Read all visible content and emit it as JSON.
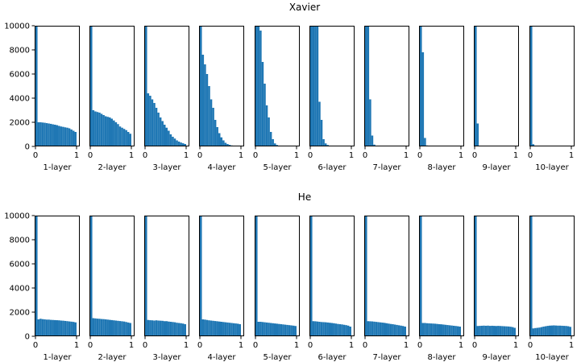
{
  "chart_data": {
    "type": "bar",
    "subtype": "histogram-grid",
    "bar_color": "#1f77b4",
    "rows": [
      {
        "title": "Xavier",
        "panels": [
          {
            "xlabel": "1-layer",
            "xlim": [
              0,
              1
            ],
            "ylim": [
              0,
              10000
            ],
            "x_ticks": [
              "0",
              "1"
            ],
            "y_ticks": [
              "0",
              "2000",
              "4000",
              "6000",
              "8000",
              "10000"
            ],
            "bin_values": [
              10000,
              2000,
              2000,
              1980,
              1960,
              1930,
              1900,
              1870,
              1830,
              1800,
              1760,
              1700,
              1650,
              1620,
              1580,
              1550,
              1500,
              1400,
              1300,
              1200
            ]
          },
          {
            "xlabel": "2-layer",
            "xlim": [
              0,
              1
            ],
            "ylim": [
              0,
              10000
            ],
            "x_ticks": [
              "0",
              "1"
            ],
            "y_ticks": [],
            "bin_values": [
              10000,
              3000,
              2900,
              2850,
              2800,
              2700,
              2600,
              2500,
              2450,
              2400,
              2300,
              2150,
              2000,
              1850,
              1650,
              1550,
              1450,
              1350,
              1200,
              1050
            ]
          },
          {
            "xlabel": "3-layer",
            "xlim": [
              0,
              1
            ],
            "ylim": [
              0,
              10000
            ],
            "x_ticks": [
              "0",
              "1"
            ],
            "y_ticks": [],
            "bin_values": [
              10000,
              4400,
              4200,
              3900,
              3600,
              3200,
              2800,
              2400,
              2100,
              1800,
              1550,
              1300,
              1000,
              800,
              650,
              500,
              400,
              320,
              260,
              200
            ]
          },
          {
            "xlabel": "4-layer",
            "xlim": [
              0,
              1
            ],
            "ylim": [
              0,
              10000
            ],
            "x_ticks": [
              "0",
              "1"
            ],
            "y_ticks": [],
            "bin_values": [
              10000,
              7600,
              6800,
              6000,
              5000,
              3900,
              3200,
              2200,
              1600,
              1100,
              750,
              500,
              300,
              200,
              130,
              80,
              50,
              30,
              20,
              10
            ]
          },
          {
            "xlabel": "5-layer",
            "xlim": [
              0,
              1
            ],
            "ylim": [
              0,
              10000
            ],
            "x_ticks": [
              "0",
              "1"
            ],
            "y_ticks": [],
            "bin_values": [
              10000,
              10000,
              9600,
              7000,
              5200,
              3400,
              2400,
              1200,
              600,
              250,
              120,
              60,
              30,
              15,
              8,
              4,
              2,
              1,
              0,
              0
            ]
          },
          {
            "xlabel": "6-layer",
            "xlim": [
              0,
              1
            ],
            "ylim": [
              0,
              10000
            ],
            "x_ticks": [
              "0",
              "1"
            ],
            "y_ticks": [],
            "bin_values": [
              10000,
              10000,
              10000,
              10000,
              3700,
              2200,
              600,
              250,
              120,
              60,
              30,
              15,
              8,
              4,
              2,
              1,
              0,
              0,
              0,
              0
            ]
          },
          {
            "xlabel": "7-layer",
            "xlim": [
              0,
              1
            ],
            "ylim": [
              0,
              10000
            ],
            "x_ticks": [
              "0",
              "1"
            ],
            "y_ticks": [],
            "bin_values": [
              10000,
              10000,
              3900,
              900,
              150,
              60,
              30,
              15,
              8,
              4,
              2,
              1,
              0,
              0,
              0,
              0,
              0,
              0,
              0,
              0
            ]
          },
          {
            "xlabel": "8-layer",
            "xlim": [
              0,
              1
            ],
            "ylim": [
              0,
              10000
            ],
            "x_ticks": [
              "0",
              "1"
            ],
            "y_ticks": [],
            "bin_values": [
              10000,
              7800,
              700,
              80,
              20,
              5,
              2,
              1,
              0,
              0,
              0,
              0,
              0,
              0,
              0,
              0,
              0,
              0,
              0,
              0
            ]
          },
          {
            "xlabel": "9-layer",
            "xlim": [
              0,
              1
            ],
            "ylim": [
              0,
              10000
            ],
            "x_ticks": [
              "0",
              "1"
            ],
            "y_ticks": [],
            "bin_values": [
              10000,
              1900,
              40,
              5,
              1,
              0,
              0,
              0,
              0,
              0,
              0,
              0,
              0,
              0,
              0,
              0,
              0,
              0,
              0,
              0
            ]
          },
          {
            "xlabel": "10-layer",
            "xlim": [
              0,
              1
            ],
            "ylim": [
              0,
              10000
            ],
            "x_ticks": [
              "0",
              "1"
            ],
            "y_ticks": [],
            "bin_values": [
              10000,
              180,
              10,
              2,
              0,
              0,
              0,
              0,
              0,
              0,
              0,
              0,
              0,
              0,
              0,
              0,
              0,
              0,
              0,
              0
            ]
          }
        ]
      },
      {
        "title": "He",
        "panels": [
          {
            "xlabel": "1-layer",
            "xlim": [
              0,
              1
            ],
            "ylim": [
              0,
              10000
            ],
            "x_ticks": [
              "0",
              "1"
            ],
            "y_ticks": [
              "0",
              "2000",
              "4000",
              "6000",
              "8000",
              "10000"
            ],
            "bin_values": [
              10000,
              1400,
              1450,
              1420,
              1400,
              1380,
              1380,
              1360,
              1350,
              1340,
              1330,
              1320,
              1300,
              1290,
              1270,
              1250,
              1230,
              1210,
              1190,
              1150
            ]
          },
          {
            "xlabel": "2-layer",
            "xlim": [
              0,
              1
            ],
            "ylim": [
              0,
              10000
            ],
            "x_ticks": [
              "0",
              "1"
            ],
            "y_ticks": [],
            "bin_values": [
              10000,
              1500,
              1480,
              1460,
              1450,
              1430,
              1420,
              1400,
              1380,
              1360,
              1340,
              1320,
              1300,
              1280,
              1260,
              1240,
              1220,
              1180,
              1140,
              1100
            ]
          },
          {
            "xlabel": "3-layer",
            "xlim": [
              0,
              1
            ],
            "ylim": [
              0,
              10000
            ],
            "x_ticks": [
              "0",
              "1"
            ],
            "y_ticks": [],
            "bin_values": [
              10000,
              1350,
              1330,
              1320,
              1300,
              1320,
              1300,
              1290,
              1280,
              1250,
              1250,
              1220,
              1200,
              1180,
              1160,
              1120,
              1100,
              1080,
              1050,
              1000
            ]
          },
          {
            "xlabel": "4-layer",
            "xlim": [
              0,
              1
            ],
            "ylim": [
              0,
              10000
            ],
            "x_ticks": [
              "0",
              "1"
            ],
            "y_ticks": [],
            "bin_values": [
              10000,
              1400,
              1380,
              1350,
              1320,
              1300,
              1280,
              1260,
              1240,
              1220,
              1200,
              1180,
              1160,
              1140,
              1120,
              1100,
              1080,
              1060,
              1040,
              1000
            ]
          },
          {
            "xlabel": "5-layer",
            "xlim": [
              0,
              1
            ],
            "ylim": [
              0,
              10000
            ],
            "x_ticks": [
              "0",
              "1"
            ],
            "y_ticks": [],
            "bin_values": [
              10000,
              1200,
              1200,
              1180,
              1160,
              1140,
              1120,
              1100,
              1080,
              1060,
              1040,
              1020,
              1000,
              980,
              960,
              940,
              920,
              900,
              880,
              850
            ]
          },
          {
            "xlabel": "6-layer",
            "xlim": [
              0,
              1
            ],
            "ylim": [
              0,
              10000
            ],
            "x_ticks": [
              "0",
              "1"
            ],
            "y_ticks": [],
            "bin_values": [
              10000,
              1250,
              1240,
              1220,
              1200,
              1180,
              1170,
              1160,
              1140,
              1120,
              1100,
              1080,
              1050,
              1020,
              1000,
              980,
              950,
              920,
              880,
              800
            ]
          },
          {
            "xlabel": "7-layer",
            "xlim": [
              0,
              1
            ],
            "ylim": [
              0,
              10000
            ],
            "x_ticks": [
              "0",
              "1"
            ],
            "y_ticks": [],
            "bin_values": [
              10000,
              1250,
              1240,
              1230,
              1210,
              1190,
              1170,
              1150,
              1130,
              1110,
              1080,
              1050,
              1020,
              1000,
              970,
              940,
              910,
              880,
              850,
              800
            ]
          },
          {
            "xlabel": "8-layer",
            "xlim": [
              0,
              1
            ],
            "ylim": [
              0,
              10000
            ],
            "x_ticks": [
              "0",
              "1"
            ],
            "y_ticks": [],
            "bin_values": [
              10000,
              1100,
              1100,
              1080,
              1070,
              1060,
              1050,
              1040,
              1020,
              1000,
              990,
              970,
              950,
              930,
              910,
              890,
              870,
              850,
              830,
              800
            ]
          },
          {
            "xlabel": "9-layer",
            "xlim": [
              0,
              1
            ],
            "ylim": [
              0,
              10000
            ],
            "x_ticks": [
              "0",
              "1"
            ],
            "y_ticks": [],
            "bin_values": [
              10000,
              850,
              860,
              870,
              880,
              870,
              880,
              860,
              870,
              860,
              850,
              860,
              850,
              840,
              830,
              820,
              810,
              790,
              760,
              700
            ]
          },
          {
            "xlabel": "10-layer",
            "xlim": [
              0,
              1
            ],
            "ylim": [
              0,
              10000
            ],
            "x_ticks": [
              "0",
              "1"
            ],
            "y_ticks": [],
            "bin_values": [
              10000,
              650,
              680,
              700,
              720,
              760,
              800,
              830,
              860,
              880,
              890,
              900,
              890,
              880,
              880,
              870,
              860,
              850,
              830,
              780
            ]
          }
        ]
      }
    ]
  }
}
